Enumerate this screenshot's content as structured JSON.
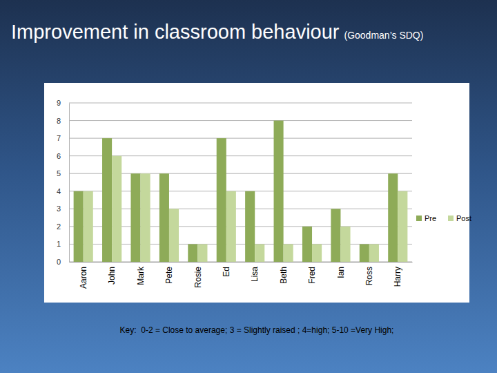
{
  "chart_data": {
    "type": "bar",
    "title": "Improvement in classroom behaviour",
    "subtitle": "(Goodman’s SDQ)",
    "annotations": [
      "Key:  0-2 = Close to average; 3 = Slightly raised ; 4=high; 5-10 =Very High;"
    ],
    "categories": [
      "Aaron",
      "John",
      "Mark",
      "Pete",
      "Rosie",
      "Ed",
      "Lisa",
      "Beth",
      "Fred",
      "Ian",
      "Ross",
      "Harry"
    ],
    "series": [
      {
        "name": "Pre",
        "color": "#8eab58",
        "values": [
          4,
          7,
          5,
          5,
          1,
          7,
          4,
          8,
          2,
          3,
          1,
          5
        ]
      },
      {
        "name": "Post",
        "color": "#c4d89c",
        "values": [
          4,
          6,
          5,
          3,
          1,
          4,
          1,
          1,
          1,
          2,
          1,
          4
        ]
      }
    ],
    "ylim": [
      0,
      9
    ],
    "yticks": [
      0,
      1,
      2,
      3,
      4,
      5,
      6,
      7,
      8,
      9
    ],
    "grid": true,
    "legend": "right"
  }
}
